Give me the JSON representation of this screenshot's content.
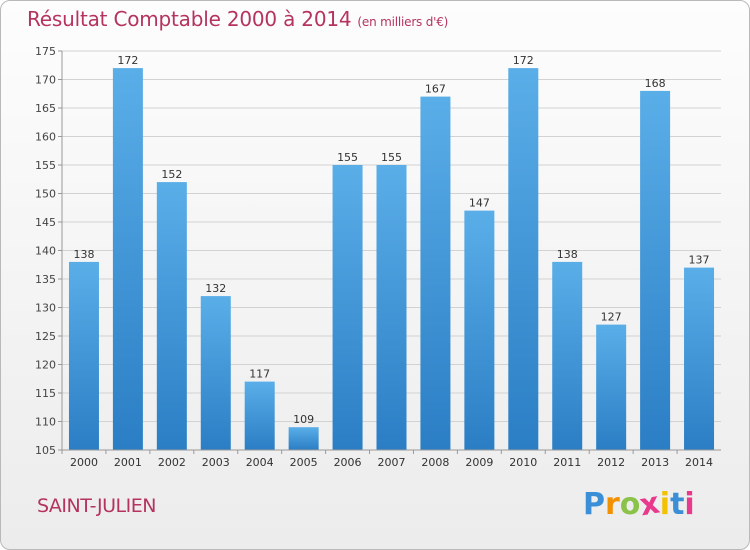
{
  "chart_data": {
    "type": "bar",
    "title": "Résultat Comptable 2000 à 2014",
    "subtitle": "(en milliers d'€)",
    "categories": [
      "2000",
      "2001",
      "2002",
      "2003",
      "2004",
      "2005",
      "2006",
      "2007",
      "2008",
      "2009",
      "2010",
      "2011",
      "2012",
      "2013",
      "2014"
    ],
    "values": [
      138,
      172,
      152,
      132,
      117,
      109,
      155,
      155,
      167,
      147,
      172,
      138,
      127,
      168,
      137
    ],
    "ylim": [
      105,
      175
    ],
    "yticks": [
      105,
      110,
      115,
      120,
      125,
      130,
      135,
      140,
      145,
      150,
      155,
      160,
      165,
      170,
      175
    ],
    "grid": true,
    "xlabel": "",
    "ylabel": ""
  },
  "place_name": "SAINT-JULIEN",
  "logo": {
    "letters": [
      "P",
      "r",
      "o",
      "x",
      "i",
      "t",
      "i"
    ],
    "colors": [
      "#3a8fd6",
      "#f29100",
      "#8bc34a",
      "#e9398d",
      "#f2c100",
      "#3a8fd6",
      "#e9398d"
    ]
  }
}
